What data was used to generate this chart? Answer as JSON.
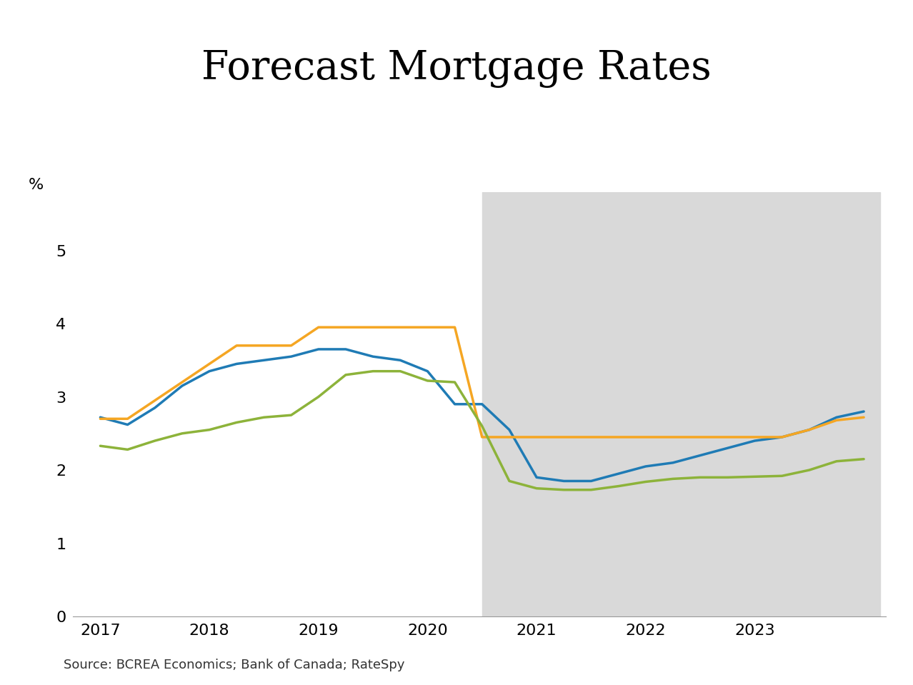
{
  "title": "Forecast Mortgage Rates",
  "ylabel": "%",
  "source_text": "Source: BCREA Economics; Bank of Canada; RateSpy",
  "background_color": "#ffffff",
  "forecast_shade_color": "#d9d9d9",
  "forecast_start": 2020.5,
  "forecast_end": 2024.15,
  "ylim": [
    0,
    5.8
  ],
  "yticks": [
    0,
    1,
    2,
    3,
    4,
    5
  ],
  "xlim": [
    2016.75,
    2024.2
  ],
  "xtick_labels": [
    "2017",
    "2018",
    "2019",
    "2020",
    "2021",
    "2022",
    "2023"
  ],
  "xtick_positions": [
    2017,
    2018,
    2019,
    2020,
    2021,
    2022,
    2023
  ],
  "fixed_rate": {
    "color": "#1f7bb5",
    "linewidth": 2.5,
    "x": [
      2017.0,
      2017.25,
      2017.5,
      2017.75,
      2018.0,
      2018.25,
      2018.5,
      2018.75,
      2019.0,
      2019.25,
      2019.5,
      2019.75,
      2020.0,
      2020.25,
      2020.5,
      2020.75,
      2021.0,
      2021.25,
      2021.5,
      2021.75,
      2022.0,
      2022.25,
      2022.5,
      2022.75,
      2023.0,
      2023.25,
      2023.5,
      2023.75,
      2024.0
    ],
    "y": [
      2.72,
      2.62,
      2.85,
      3.15,
      3.35,
      3.45,
      3.5,
      3.55,
      3.65,
      3.65,
      3.55,
      3.5,
      3.35,
      2.9,
      2.9,
      2.55,
      1.9,
      1.85,
      1.85,
      1.95,
      2.05,
      2.1,
      2.2,
      2.3,
      2.4,
      2.45,
      2.55,
      2.72,
      2.8
    ]
  },
  "prime_rate": {
    "color": "#f5a623",
    "linewidth": 2.5,
    "x": [
      2017.0,
      2017.25,
      2017.5,
      2017.75,
      2018.0,
      2018.25,
      2018.5,
      2018.75,
      2019.0,
      2019.25,
      2019.5,
      2019.75,
      2020.0,
      2020.25,
      2020.5,
      2020.75,
      2021.0,
      2021.25,
      2021.5,
      2021.75,
      2022.0,
      2022.25,
      2022.5,
      2022.75,
      2023.0,
      2023.25,
      2023.5,
      2023.75,
      2024.0
    ],
    "y": [
      2.7,
      2.7,
      2.95,
      3.2,
      3.45,
      3.7,
      3.7,
      3.7,
      3.95,
      3.95,
      3.95,
      3.95,
      3.95,
      3.95,
      2.45,
      2.45,
      2.45,
      2.45,
      2.45,
      2.45,
      2.45,
      2.45,
      2.45,
      2.45,
      2.45,
      2.45,
      2.55,
      2.68,
      2.72
    ]
  },
  "variable_rate": {
    "color": "#8db33a",
    "linewidth": 2.5,
    "x": [
      2017.0,
      2017.25,
      2017.5,
      2017.75,
      2018.0,
      2018.25,
      2018.5,
      2018.75,
      2019.0,
      2019.25,
      2019.5,
      2019.75,
      2020.0,
      2020.25,
      2020.5,
      2020.75,
      2021.0,
      2021.25,
      2021.5,
      2021.75,
      2022.0,
      2022.25,
      2022.5,
      2022.75,
      2023.0,
      2023.25,
      2023.5,
      2023.75,
      2024.0
    ],
    "y": [
      2.33,
      2.28,
      2.4,
      2.5,
      2.55,
      2.65,
      2.72,
      2.75,
      3.0,
      3.3,
      3.35,
      3.35,
      3.22,
      3.2,
      2.6,
      1.85,
      1.75,
      1.73,
      1.73,
      1.78,
      1.84,
      1.88,
      1.9,
      1.9,
      1.91,
      1.92,
      2.0,
      2.12,
      2.15
    ]
  }
}
